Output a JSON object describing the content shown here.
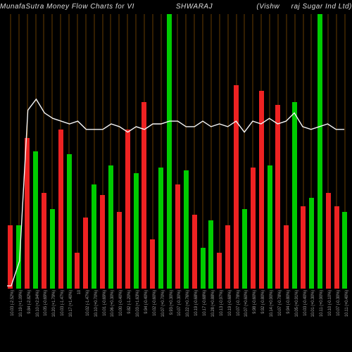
{
  "chart": {
    "type": "bar",
    "title_parts": [
      "MunafaSutra  Money Flow  Charts for VI",
      "SHWARAJ",
      "(Vishw",
      "raj Sugar Ind Ltd) Mun"
    ],
    "title_fontsize": 10,
    "background_color": "#000000",
    "grid_color": "#cc7a00",
    "text_color": "#cccccc",
    "line_color": "#f5f5f5",
    "line_width": 1.4,
    "colors": {
      "up": "#00cc00",
      "down": "#ee2222"
    },
    "ylim": [
      0,
      100
    ],
    "bars": [
      {
        "h": 23,
        "c": "down",
        "label": "10.03 (-2.52%)"
      },
      {
        "h": 23,
        "c": "up",
        "label": "10.19 (+1.09%)"
      },
      {
        "h": 55,
        "c": "down",
        "label": "9.84 (-2.82%)"
      },
      {
        "h": 50,
        "c": "up",
        "label": "10.10 (+2.94%)"
      },
      {
        "h": 35,
        "c": "down",
        "label": "10.05 (-0.69%)"
      },
      {
        "h": 29,
        "c": "up",
        "label": "10.20 (+1.79%)"
      },
      {
        "h": 58,
        "c": "down",
        "label": "10.03 (-1.47%)"
      },
      {
        "h": 49,
        "c": "up",
        "label": "10.17 (+1.40%)"
      },
      {
        "h": 13,
        "c": "down",
        "label": "10"
      },
      {
        "h": 26,
        "c": "down",
        "label": "10.02 (-1.47%)"
      },
      {
        "h": 38,
        "c": "up",
        "label": "10.10 (+0.70%)"
      },
      {
        "h": 34,
        "c": "down",
        "label": "10.01 (-0.69%)"
      },
      {
        "h": 45,
        "c": "up",
        "label": "10.06 (+0.30%)"
      },
      {
        "h": 28,
        "c": "down",
        "label": "10.00 (-0.40%)"
      },
      {
        "h": 58,
        "c": "down",
        "label": "9.82 (-1.20%)"
      },
      {
        "h": 42,
        "c": "up",
        "label": "10.03 (+1.63%)"
      },
      {
        "h": 68,
        "c": "down",
        "label": "9.94 (-0.40%)"
      },
      {
        "h": 18,
        "c": "down",
        "label": "10.02 (-0.60%)"
      },
      {
        "h": 44,
        "c": "up",
        "label": "10.07 (+0.70%)"
      },
      {
        "h": 100,
        "c": "up",
        "label": "9.93 (+0.30%)"
      },
      {
        "h": 38,
        "c": "down",
        "label": "10.07 (-0.30%)"
      },
      {
        "h": 43,
        "c": "up",
        "label": "10.22 (+0.76%)"
      },
      {
        "h": 27,
        "c": "down",
        "label": "10.19 (-0.68%)"
      },
      {
        "h": 15,
        "c": "up",
        "label": "10.17 (-0.68%)"
      },
      {
        "h": 25,
        "c": "up",
        "label": "10.28 (+0.88%)"
      },
      {
        "h": 13,
        "c": "down",
        "label": "10.13 (-0.97%)"
      },
      {
        "h": 23,
        "c": "down",
        "label": "10.19 (-0.68%)"
      },
      {
        "h": 74,
        "c": "down",
        "label": "10.07 (-0.78%)"
      },
      {
        "h": 29,
        "c": "up",
        "label": "10.07 (+0.60%)"
      },
      {
        "h": 44,
        "c": "down",
        "label": "9.98 (-0.60%)"
      },
      {
        "h": 72,
        "c": "down",
        "label": "9.92 (-0.80%)"
      },
      {
        "h": 45,
        "c": "up",
        "label": "10.14 (+0.90%)"
      },
      {
        "h": 67,
        "c": "down",
        "label": "10.07 (-0.78%)"
      },
      {
        "h": 23,
        "c": "down",
        "label": "9.94 (-0.80%)"
      },
      {
        "h": 68,
        "c": "up",
        "label": "10.05 (+0.91%)"
      },
      {
        "h": 30,
        "c": "down",
        "label": "10.03 (-0.40%)"
      },
      {
        "h": 33,
        "c": "up",
        "label": "10.01 (+0.30%)"
      },
      {
        "h": 100,
        "c": "up",
        "label": "10.11 (+0.90%)"
      },
      {
        "h": 35,
        "c": "down",
        "label": "10.10 (-0.10%)"
      },
      {
        "h": 30,
        "c": "down",
        "label": "10.07 (-0.30%)"
      },
      {
        "h": 28,
        "c": "up",
        "label": "10.11 (+0.40%)"
      }
    ],
    "line_points": [
      1,
      10,
      65,
      69,
      64,
      62,
      61,
      60,
      61,
      58,
      58,
      58,
      60,
      59,
      57,
      59,
      58,
      60,
      60,
      61,
      61,
      59,
      59,
      61,
      59,
      60,
      59,
      61,
      57,
      61,
      60,
      62,
      60,
      61,
      64,
      59,
      58,
      59,
      60,
      58,
      58
    ]
  }
}
